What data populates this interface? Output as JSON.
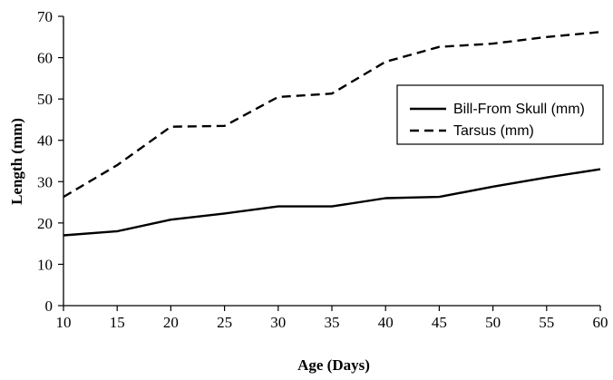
{
  "chart_data": {
    "type": "line",
    "title": "",
    "xlabel": "Age (Days)",
    "ylabel": "Length (mm)",
    "x": [
      10,
      15,
      20,
      25,
      30,
      35,
      40,
      45,
      50,
      55,
      60
    ],
    "xlim": [
      10,
      60
    ],
    "ylim": [
      0,
      70
    ],
    "xticks": [
      10,
      15,
      20,
      25,
      30,
      35,
      40,
      45,
      50,
      55,
      60
    ],
    "yticks": [
      0,
      10,
      20,
      30,
      40,
      50,
      60,
      70
    ],
    "grid": false,
    "legend_position": "right",
    "series": [
      {
        "name": "Bill-From Skull (mm)",
        "style": "solid",
        "color": "#000000",
        "values": [
          17,
          18,
          20.8,
          22.3,
          24,
          24,
          26,
          26.3,
          28.8,
          31,
          33
        ]
      },
      {
        "name": "Tarsus (mm)",
        "style": "dashed",
        "color": "#000000",
        "values": [
          26.3,
          34,
          43.3,
          43.5,
          50.5,
          51.3,
          59,
          62.6,
          63.4,
          65,
          66.2
        ]
      }
    ]
  }
}
